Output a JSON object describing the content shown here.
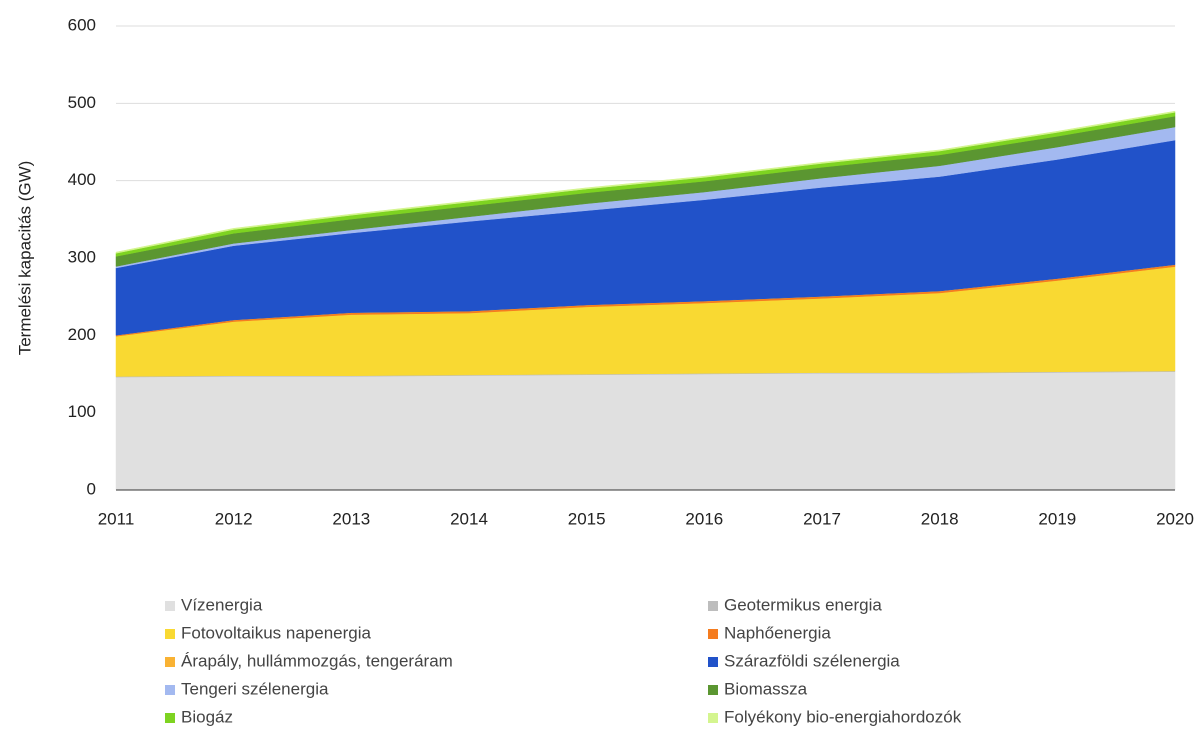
{
  "chart_data": {
    "type": "area",
    "stacked": true,
    "y_label": "Termelési kapacitás (GW)",
    "x": [
      2011,
      2012,
      2013,
      2014,
      2015,
      2016,
      2017,
      2018,
      2019,
      2020
    ],
    "xlim": [
      2011,
      2020
    ],
    "xticks": [
      2011,
      2012,
      2013,
      2014,
      2015,
      2016,
      2017,
      2018,
      2019,
      2020
    ],
    "ylim": [
      0,
      600
    ],
    "yticks": [
      0,
      100,
      200,
      300,
      400,
      500,
      600
    ],
    "grid": true,
    "legend": "bottom",
    "series": [
      {
        "name": "Vízenergia",
        "color": "#e0e0e0",
        "values": [
          146,
          147,
          147,
          148,
          149,
          150,
          151,
          151,
          152,
          153
        ]
      },
      {
        "name": "Geotermikus energia",
        "color": "#bdbdbd",
        "values": [
          0.8,
          0.8,
          0.8,
          0.8,
          0.8,
          0.8,
          0.8,
          0.8,
          0.9,
          0.9
        ]
      },
      {
        "name": "Fotovoltaikus napenergia",
        "color": "#f9d932",
        "values": [
          52,
          70,
          79,
          80,
          87,
          91,
          96,
          103,
          118,
          135
        ]
      },
      {
        "name": "Naphőenergia",
        "color": "#f57c1f",
        "values": [
          1.1,
          1.9,
          2.3,
          2.3,
          2.3,
          2.3,
          2.3,
          2.3,
          2.3,
          2.3
        ]
      },
      {
        "name": "Árapály, hullámmozgás, tengeráram",
        "color": "#f9b233",
        "values": [
          0.2,
          0.2,
          0.2,
          0.2,
          0.2,
          0.2,
          0.2,
          0.2,
          0.2,
          0.2
        ]
      },
      {
        "name": "Szárazföldi szélenergia",
        "color": "#2152c9",
        "values": [
          87,
          96,
          103,
          116,
          122,
          131,
          141,
          148,
          154,
          161
        ]
      },
      {
        "name": "Tengeri szélenergia",
        "color": "#a3b9f0",
        "values": [
          2,
          3,
          4,
          6,
          9,
          10,
          12,
          14,
          16,
          17
        ]
      },
      {
        "name": "Biomassza",
        "color": "#5b9631",
        "values": [
          13,
          13,
          14,
          14,
          14,
          14,
          14,
          14,
          14,
          14
        ]
      },
      {
        "name": "Biogáz",
        "color": "#7ed321",
        "values": [
          4,
          5,
          5,
          5,
          5,
          5,
          5,
          5,
          5,
          5
        ]
      },
      {
        "name": "Folyékony bio-energiahordozók",
        "color": "#d4f58f",
        "values": [
          1.5,
          1.5,
          1.5,
          1.5,
          1.5,
          1.5,
          1.5,
          1.5,
          1.5,
          1.5
        ]
      }
    ]
  }
}
